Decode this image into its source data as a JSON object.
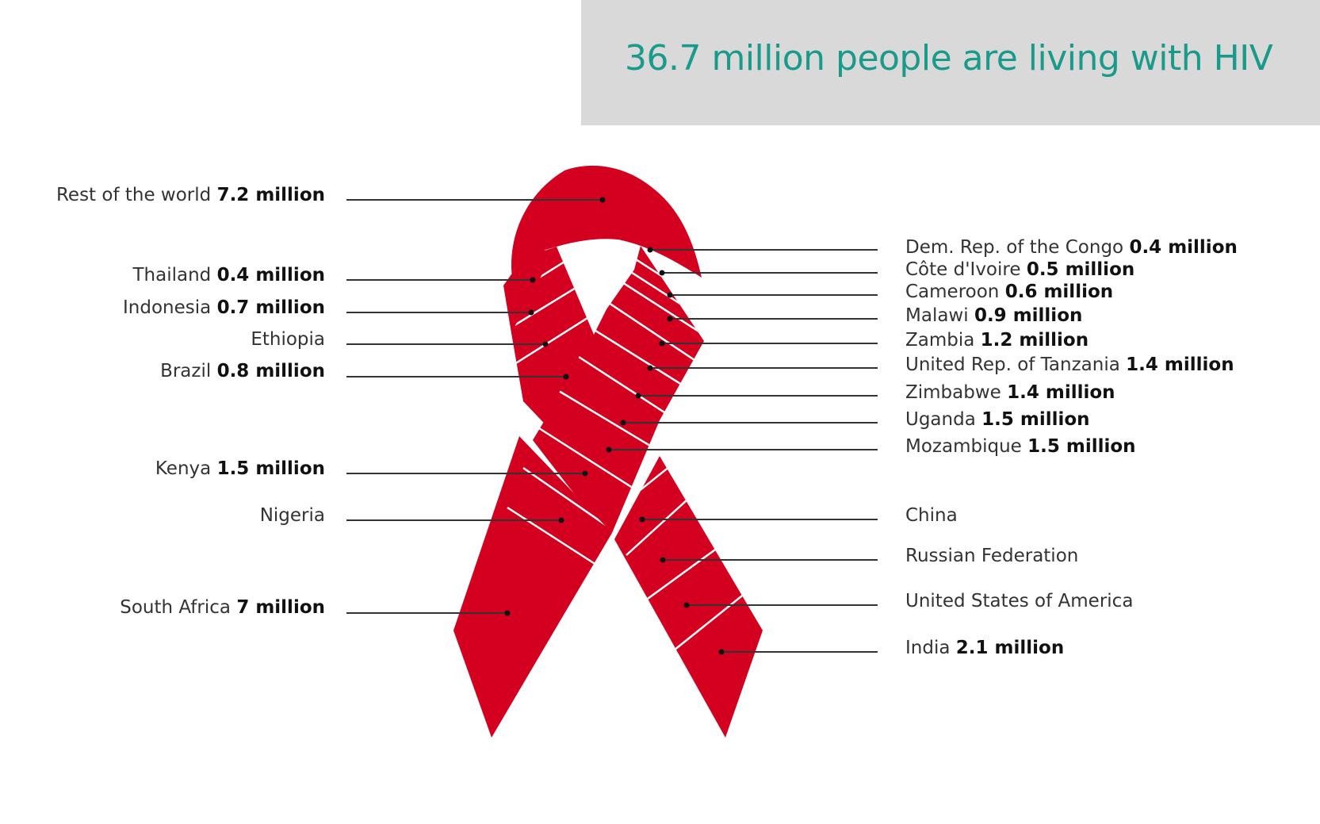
{
  "title": "36.7 million people are living with HIV",
  "colors": {
    "ribbon": "#d4001f",
    "title": "#1a9a8a",
    "title_bg": "#d9d9d9",
    "leader": "#333333"
  },
  "chart_data": {
    "type": "ribbon-breakdown",
    "title": "36.7 million people are living with HIV",
    "unit": "million",
    "segments": [
      {
        "name": "Rest of the world",
        "value": 7.2,
        "value_text": "7.2 million"
      },
      {
        "name": "Thailand",
        "value": 0.4,
        "value_text": "0.4 million"
      },
      {
        "name": "Indonesia",
        "value": 0.7,
        "value_text": "0.7 million"
      },
      {
        "name": "Ethiopia",
        "value": null,
        "value_text": ""
      },
      {
        "name": "Brazil",
        "value": 0.8,
        "value_text": "0.8 million"
      },
      {
        "name": "Kenya",
        "value": 1.5,
        "value_text": "1.5 million"
      },
      {
        "name": "Nigeria",
        "value": null,
        "value_text": ""
      },
      {
        "name": "South Africa",
        "value": 7,
        "value_text": "7 million"
      },
      {
        "name": "Dem. Rep. of the Congo",
        "value": 0.4,
        "value_text": "0.4 million"
      },
      {
        "name": "Côte d'Ivoire",
        "value": 0.5,
        "value_text": "0.5 million"
      },
      {
        "name": "Cameroon",
        "value": 0.6,
        "value_text": "0.6 million"
      },
      {
        "name": "Malawi",
        "value": 0.9,
        "value_text": "0.9 million"
      },
      {
        "name": "Zambia",
        "value": 1.2,
        "value_text": "1.2 million"
      },
      {
        "name": "United Rep. of Tanzania",
        "value": 1.4,
        "value_text": "1.4 million"
      },
      {
        "name": "Zimbabwe",
        "value": 1.4,
        "value_text": "1.4 million"
      },
      {
        "name": "Uganda",
        "value": 1.5,
        "value_text": "1.5 million"
      },
      {
        "name": "Mozambique",
        "value": 1.5,
        "value_text": "1.5 million"
      },
      {
        "name": "China",
        "value": null,
        "value_text": ""
      },
      {
        "name": "Russian Federation",
        "value": null,
        "value_text": ""
      },
      {
        "name": "United States of America",
        "value": null,
        "value_text": ""
      },
      {
        "name": "India",
        "value": 2.1,
        "value_text": "2.1 million"
      }
    ]
  }
}
